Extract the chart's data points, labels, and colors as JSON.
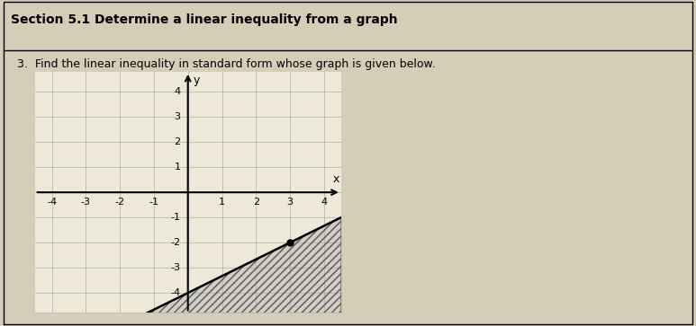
{
  "section_title": "Section 5.1 Determine a linear inequality from a graph",
  "problem_number": "3.",
  "problem_text": "Find the linear inequality in standard form whose graph is given below.",
  "xlim": [
    -4.5,
    4.5
  ],
  "ylim": [
    -4.8,
    4.8
  ],
  "xticks": [
    -4,
    -3,
    -2,
    -1,
    1,
    2,
    3,
    4
  ],
  "yticks": [
    -4,
    -3,
    -2,
    -1,
    1,
    2,
    3,
    4
  ],
  "line_slope": 0.6667,
  "line_intercept": -4,
  "line_color": "#000000",
  "shade_color": "#aaaaaa",
  "shade_alpha": 0.4,
  "background_color": "#d6cdb8",
  "graph_bg": "#ede8d8",
  "grid_color": "#888888",
  "point2": [
    3,
    -2
  ],
  "line_width": 1.8,
  "title_fontsize": 10,
  "label_fontsize": 9,
  "tick_fontsize": 8
}
